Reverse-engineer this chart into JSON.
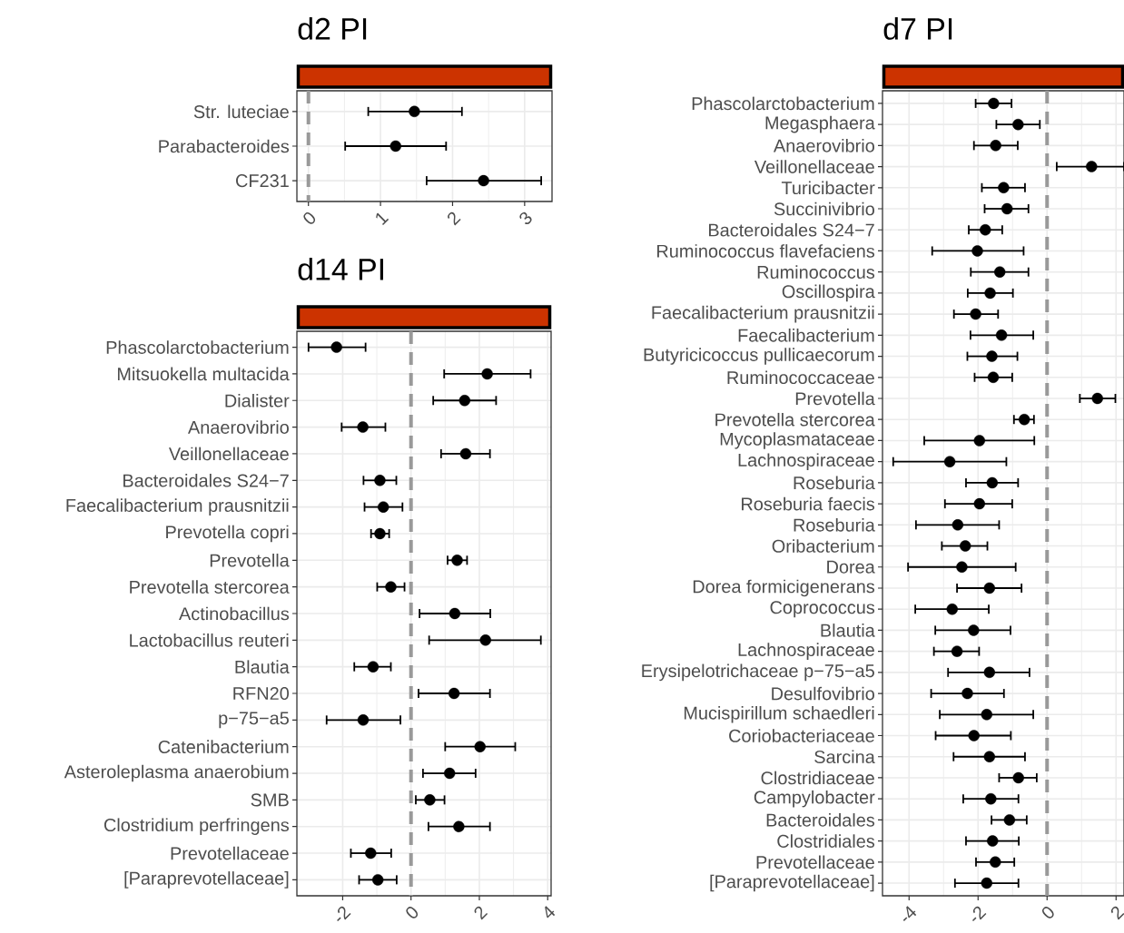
{
  "chart_data": [
    {
      "type": "scatter",
      "title": "d2 PI",
      "orientation": "horizontal",
      "grid": true,
      "color": "#000000",
      "categories": [
        "Str. luteciae",
        "Parabacteroides",
        "CF231"
      ],
      "values": [
        1.47,
        1.21,
        2.43
      ],
      "errors": [
        [
          0.83,
          2.13
        ],
        [
          0.51,
          1.91
        ],
        [
          1.64,
          3.23
        ]
      ],
      "xlim": [
        -0.16,
        3.38
      ],
      "xticks": [
        0,
        1,
        2,
        3
      ],
      "ref_lines": [
        {
          "axis": "x",
          "value": 0,
          "color": "#999999",
          "line_style": "dashed"
        }
      ]
    },
    {
      "type": "scatter",
      "title": "d7 PI",
      "orientation": "horizontal",
      "grid": true,
      "color": "#000000",
      "categories": [
        "Phascolarctobacterium",
        "Megasphaera",
        "Anaerovibrio",
        "Veillonellaceae",
        "Turicibacter",
        "Succinivibrio",
        "Bacteroidales S24−7",
        "Ruminococcus flavefaciens",
        "Ruminococcus",
        "Oscillospira",
        "Faecalibacterium prausnitzii",
        "Faecalibacterium",
        "Butyricicoccus pullicaecorum",
        "Ruminococcaceae",
        "Prevotella",
        "Prevotella stercorea",
        "Mycoplasmataceae",
        "Lachnospiraceae",
        "Roseburia",
        "Roseburia faecis",
        "Roseburia",
        "Oribacterium",
        "Dorea",
        "Dorea formicigenerans",
        "Coprococcus",
        "Blautia",
        "Lachnospiraceae",
        "Erysipelotrichaceae p−75−a5",
        "Desulfovibrio",
        "Mucispirillum schaedleri",
        "Coriobacteriaceae",
        "Sarcina",
        "Clostridiaceae",
        "Campylobacter",
        "Bacteroidales",
        "Clostridiales",
        "Prevotellaceae",
        "[Paraprevotellaceae]"
      ],
      "values": [
        -1.55,
        -0.84,
        -1.49,
        1.29,
        -1.26,
        -1.16,
        -1.79,
        -2.02,
        -1.37,
        -1.65,
        -2.07,
        -1.32,
        -1.6,
        -1.56,
        1.46,
        -0.66,
        -1.96,
        -2.82,
        -1.59,
        -1.96,
        -2.59,
        -2.37,
        -2.47,
        -1.67,
        -2.75,
        -2.13,
        -2.61,
        -1.67,
        -2.31,
        -1.75,
        -2.12,
        -1.67,
        -0.83,
        -1.63,
        -1.09,
        -1.58,
        -1.5,
        -1.75
      ],
      "errors": [
        [
          -2.07,
          -1.03
        ],
        [
          -1.47,
          -0.21
        ],
        [
          -2.12,
          -0.85
        ],
        [
          0.28,
          2.23
        ],
        [
          -1.89,
          -0.64
        ],
        [
          -1.81,
          -0.54
        ],
        [
          -2.27,
          -1.3
        ],
        [
          -3.33,
          -0.68
        ],
        [
          -2.21,
          -0.54
        ],
        [
          -2.3,
          -0.99
        ],
        [
          -2.7,
          -1.42
        ],
        [
          -2.22,
          -0.4
        ],
        [
          -2.31,
          -0.86
        ],
        [
          -2.1,
          -1.01
        ],
        [
          0.95,
          1.98
        ],
        [
          -0.96,
          -0.38
        ],
        [
          -3.56,
          -0.37
        ],
        [
          -4.46,
          -1.18
        ],
        [
          -2.35,
          -0.84
        ],
        [
          -2.96,
          -1.01
        ],
        [
          -3.8,
          -1.39
        ],
        [
          -3.05,
          -1.73
        ],
        [
          -4.03,
          -0.91
        ],
        [
          -2.61,
          -0.74
        ],
        [
          -3.82,
          -1.69
        ],
        [
          -3.24,
          -1.06
        ],
        [
          -3.28,
          -1.97
        ],
        [
          -2.87,
          -0.51
        ],
        [
          -3.36,
          -1.25
        ],
        [
          -3.11,
          -0.4
        ],
        [
          -3.23,
          -1.05
        ],
        [
          -2.71,
          -0.64
        ],
        [
          -1.39,
          -0.3
        ],
        [
          -2.43,
          -0.83
        ],
        [
          -1.61,
          -0.59
        ],
        [
          -2.35,
          -0.82
        ],
        [
          -2.06,
          -0.95
        ],
        [
          -2.67,
          -0.83
        ]
      ],
      "xlim": [
        -4.77,
        2.23
      ],
      "xticks": [
        -4,
        -2,
        0,
        2
      ],
      "ref_lines": [
        {
          "axis": "x",
          "value": 0,
          "color": "#999999",
          "line_style": "dashed"
        }
      ]
    },
    {
      "type": "scatter",
      "title": "d14 PI",
      "orientation": "horizontal",
      "grid": true,
      "color": "#000000",
      "categories": [
        "Phascolarctobacterium",
        "Mitsuokella multacida",
        "Dialister",
        "Anaerovibrio",
        "Veillonellaceae",
        "Bacteroidales S24−7",
        "Faecalibacterium prausnitzii",
        "Prevotella copri",
        "Prevotella",
        "Prevotella stercorea",
        "Actinobacillus",
        "Lactobacillus reuteri",
        "Blautia",
        "RFN20",
        "p−75−a5",
        "Catenibacterium",
        "Asteroleplasma anaerobium",
        "SMB",
        "Clostridium perfringens",
        "Prevotellaceae",
        "[Paraprevotellaceae]"
      ],
      "values": [
        -2.18,
        2.23,
        1.57,
        -1.41,
        1.6,
        -0.91,
        -0.81,
        -0.91,
        1.35,
        -0.59,
        1.28,
        2.18,
        -1.11,
        1.26,
        -1.4,
        2.02,
        1.13,
        0.55,
        1.4,
        -1.18,
        -0.97
      ],
      "errors": [
        [
          -3.0,
          -1.33
        ],
        [
          0.97,
          3.5
        ],
        [
          0.65,
          2.49
        ],
        [
          -2.03,
          -0.75
        ],
        [
          0.88,
          2.31
        ],
        [
          -1.39,
          -0.43
        ],
        [
          -1.36,
          -0.25
        ],
        [
          -1.17,
          -0.64
        ],
        [
          1.07,
          1.64
        ],
        [
          -0.99,
          -0.19
        ],
        [
          0.25,
          2.32
        ],
        [
          0.53,
          3.8
        ],
        [
          -1.66,
          -0.59
        ],
        [
          0.22,
          2.31
        ],
        [
          -2.47,
          -0.31
        ],
        [
          1.0,
          3.05
        ],
        [
          0.35,
          1.89
        ],
        [
          0.14,
          0.98
        ],
        [
          0.51,
          2.31
        ],
        [
          -1.76,
          -0.58
        ],
        [
          -1.52,
          -0.42
        ]
      ],
      "xlim": [
        -3.34,
        4.1
      ],
      "xticks": [
        -2,
        0,
        2,
        4
      ],
      "ref_lines": [
        {
          "axis": "x",
          "value": 0,
          "color": "#999999",
          "line_style": "dashed"
        }
      ]
    }
  ]
}
